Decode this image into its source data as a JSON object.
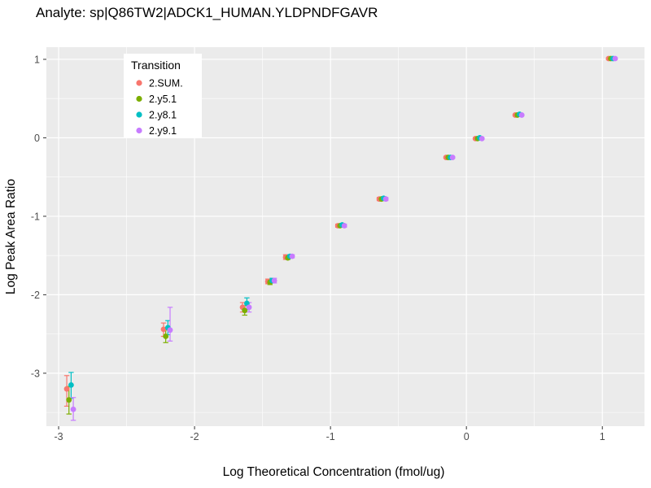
{
  "title": "Analyte: sp|Q86TW2|ADCK1_HUMAN.YLDPNDFGAVR",
  "chart_data": {
    "type": "scatter",
    "title": "Analyte: sp|Q86TW2|ADCK1_HUMAN.YLDPNDFGAVR",
    "xlabel": "Log Theoretical Concentration (fmol/ug)",
    "ylabel": "Log Peak Area Ratio",
    "xlim": [
      -3.09,
      1.31
    ],
    "ylim": [
      -3.675,
      1.155
    ],
    "xticks": [
      -3,
      -2,
      -1,
      0,
      1
    ],
    "yticks": [
      1,
      0,
      -1,
      -2,
      -3
    ],
    "xticks_minor": [
      -2.5,
      -1.5,
      -0.5,
      0.5
    ],
    "yticks_minor": [
      0.5,
      -0.5,
      -1.5,
      -2.5,
      -3.5
    ],
    "grid": true,
    "panel_bg": "#EBEBEB",
    "grid_color": "#FFFFFF",
    "tick_color": "#333333",
    "tick_label_color": "#4D4D4D",
    "legend": {
      "title": "Transition",
      "position": "inside-top-left"
    },
    "point_format": [
      "x",
      "y",
      "err_lo",
      "err_hi"
    ],
    "series": [
      {
        "name": "2.SUM.",
        "color": "#F8766D",
        "points": [
          [
            -2.94,
            -3.2,
            -3.42,
            -3.03
          ],
          [
            -2.228,
            -2.44,
            -2.53,
            -2.36
          ],
          [
            -1.647,
            -2.16,
            -2.22,
            -2.1
          ],
          [
            -1.461,
            -1.83,
            -1.86,
            -1.8
          ],
          [
            -1.33,
            -1.52,
            -1.55,
            -1.49
          ],
          [
            -0.946,
            -1.12,
            -1.14,
            -1.1
          ],
          [
            -0.641,
            -0.78,
            -0.8,
            -0.76
          ],
          [
            -0.15,
            -0.25,
            -0.26,
            -0.24
          ],
          [
            0.066,
            -0.01,
            -0.02,
            0.0
          ],
          [
            0.359,
            0.29,
            0.28,
            0.3
          ],
          [
            1.046,
            1.01,
            1.0,
            1.02
          ]
        ]
      },
      {
        "name": "2.y5.1",
        "color": "#7CAE00",
        "points": [
          [
            -2.924,
            -3.34,
            -3.52,
            -3.17
          ],
          [
            -2.212,
            -2.53,
            -2.61,
            -2.45
          ],
          [
            -1.631,
            -2.2,
            -2.26,
            -2.14
          ],
          [
            -1.445,
            -1.84,
            -1.87,
            -1.81
          ],
          [
            -1.314,
            -1.53,
            -1.55,
            -1.51
          ],
          [
            -0.93,
            -1.12,
            -1.14,
            -1.1
          ],
          [
            -0.625,
            -0.78,
            -0.8,
            -0.76
          ],
          [
            -0.134,
            -0.25,
            -0.26,
            -0.24
          ],
          [
            0.082,
            -0.01,
            -0.02,
            0.0
          ],
          [
            0.375,
            0.29,
            0.28,
            0.3
          ],
          [
            1.062,
            1.01,
            1.0,
            1.02
          ]
        ]
      },
      {
        "name": "2.y8.1",
        "color": "#00BFC4",
        "points": [
          [
            -2.908,
            -3.15,
            -3.32,
            -2.99
          ],
          [
            -2.196,
            -2.42,
            -2.51,
            -2.33
          ],
          [
            -1.615,
            -2.11,
            -2.19,
            -2.04
          ],
          [
            -1.429,
            -1.82,
            -1.85,
            -1.79
          ],
          [
            -1.298,
            -1.51,
            -1.53,
            -1.49
          ],
          [
            -0.914,
            -1.11,
            -1.13,
            -1.09
          ],
          [
            -0.609,
            -0.77,
            -0.79,
            -0.75
          ],
          [
            -0.118,
            -0.25,
            -0.26,
            -0.24
          ],
          [
            0.098,
            0.0,
            -0.01,
            0.01
          ],
          [
            0.391,
            0.3,
            0.29,
            0.31
          ],
          [
            1.078,
            1.01,
            1.0,
            1.02
          ]
        ]
      },
      {
        "name": "2.y9.1",
        "color": "#C77CFF",
        "points": [
          [
            -2.892,
            -3.46,
            -3.6,
            -3.31
          ],
          [
            -2.18,
            -2.45,
            -2.59,
            -2.16
          ],
          [
            -1.599,
            -2.16,
            -2.22,
            -2.1
          ],
          [
            -1.413,
            -1.82,
            -1.85,
            -1.79
          ],
          [
            -1.282,
            -1.51,
            -1.53,
            -1.49
          ],
          [
            -0.898,
            -1.12,
            -1.14,
            -1.1
          ],
          [
            -0.593,
            -0.78,
            -0.8,
            -0.76
          ],
          [
            -0.102,
            -0.25,
            -0.26,
            -0.24
          ],
          [
            0.114,
            -0.01,
            -0.02,
            0.0
          ],
          [
            0.407,
            0.29,
            0.28,
            0.3
          ],
          [
            1.094,
            1.01,
            1.0,
            1.02
          ]
        ]
      }
    ]
  }
}
